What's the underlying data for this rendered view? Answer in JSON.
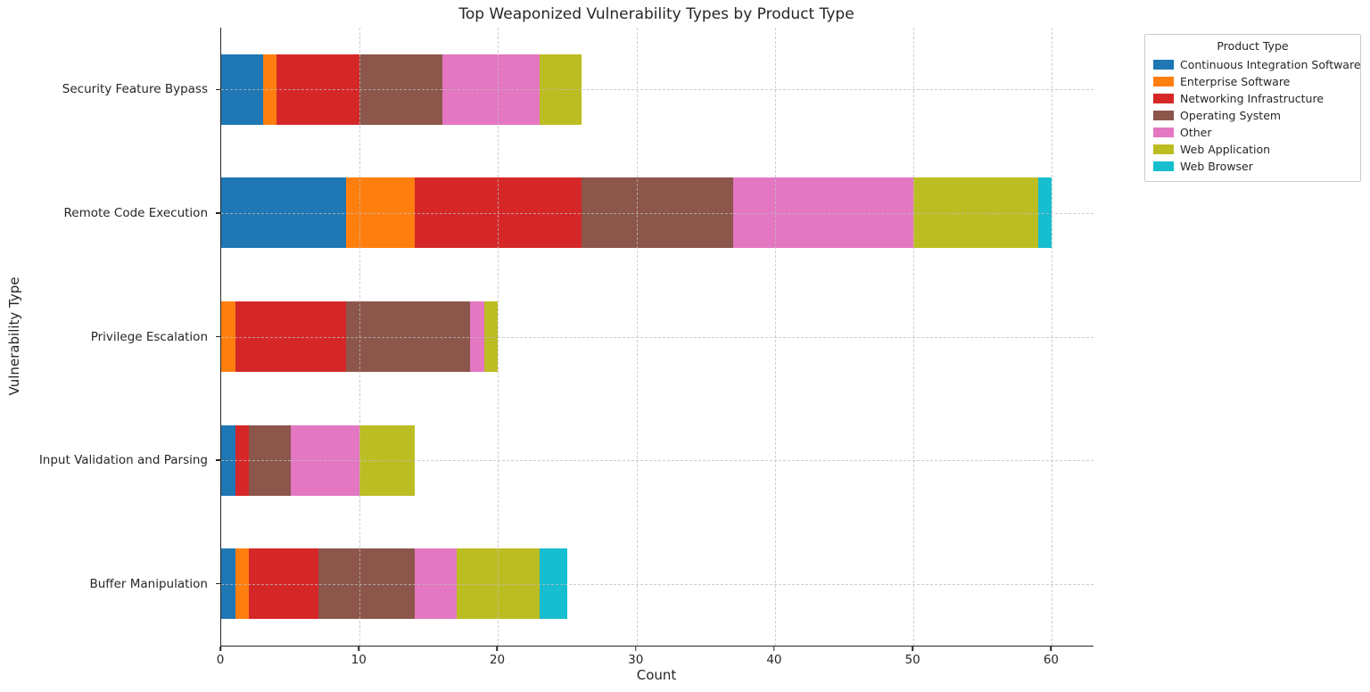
{
  "chart_data": {
    "type": "bar",
    "orientation": "horizontal",
    "stacked": true,
    "title": "Top Weaponized Vulnerability Types by Product Type",
    "xlabel": "Count",
    "ylabel": "Vulnerability Type",
    "legend_title": "Product Type",
    "legend_position": "upper right, outside plot",
    "grid": "dashed, both axes, drawn over bars",
    "categories": [
      "Security Feature Bypass",
      "Remote Code Execution",
      "Privilege Escalation",
      "Input Validation and Parsing",
      "Buffer Manipulation"
    ],
    "series": [
      {
        "name": "Continuous Integration Software",
        "color": "#1f77b4",
        "values": [
          3,
          9,
          0,
          1,
          1
        ]
      },
      {
        "name": "Enterprise Software",
        "color": "#ff7f0e",
        "values": [
          1,
          5,
          1,
          0,
          1
        ]
      },
      {
        "name": "Networking Infrastructure",
        "color": "#d62728",
        "values": [
          6,
          12,
          8,
          1,
          5
        ]
      },
      {
        "name": "Operating System",
        "color": "#8c564b",
        "values": [
          6,
          11,
          9,
          3,
          7
        ]
      },
      {
        "name": "Other",
        "color": "#e377c2",
        "values": [
          7,
          13,
          1,
          5,
          3
        ]
      },
      {
        "name": "Web Application",
        "color": "#bcbd22",
        "values": [
          3,
          9,
          1,
          4,
          6
        ]
      },
      {
        "name": "Web Browser",
        "color": "#17becf",
        "values": [
          0,
          1,
          0,
          0,
          2
        ]
      }
    ],
    "bar_totals": [
      26,
      60,
      20,
      14,
      25
    ],
    "xlim": [
      0,
      63
    ],
    "xticks": [
      0,
      10,
      20,
      30,
      40,
      50,
      60
    ],
    "text_color": "#262626",
    "spine_color": "#262626",
    "gridline_color": "#bebebe"
  }
}
